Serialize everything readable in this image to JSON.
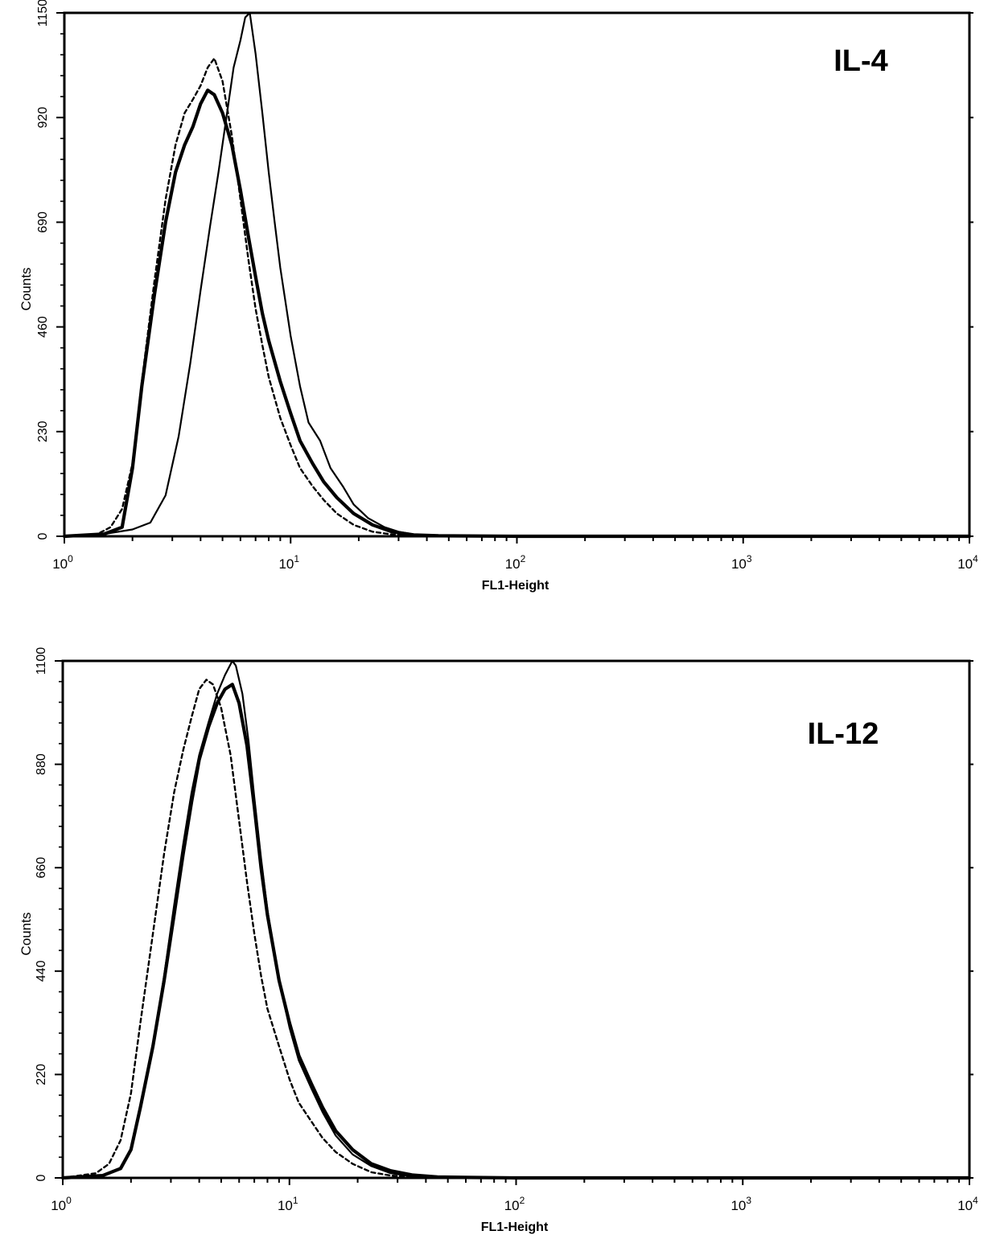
{
  "chart_data": [
    {
      "type": "line",
      "title": "IL-4",
      "xlabel": "FL1-Height",
      "ylabel": "Counts",
      "xscale": "log",
      "xlim": [
        1,
        10000
      ],
      "ylim": [
        0,
        1150
      ],
      "xticks": [
        1,
        10,
        100,
        1000,
        10000
      ],
      "xtick_labels": [
        {
          "base": "10",
          "exp": "0"
        },
        {
          "base": "10",
          "exp": "1"
        },
        {
          "base": "10",
          "exp": "2"
        },
        {
          "base": "10",
          "exp": "3"
        },
        {
          "base": "10",
          "exp": "4"
        }
      ],
      "yticks": [
        0,
        230,
        460,
        690,
        920,
        1150
      ],
      "ytick_labels": [
        "0",
        "230",
        "460",
        "690",
        "920",
        "1150"
      ],
      "grid": false,
      "series": [
        {
          "style": "dotted",
          "x": [
            1.0,
            1.4,
            1.6,
            1.8,
            2.0,
            2.2,
            2.5,
            2.8,
            3.1,
            3.4,
            3.7,
            4.0,
            4.3,
            4.6,
            5.0,
            5.5,
            6.0,
            6.5,
            7.0,
            7.5,
            8.0,
            9.0,
            10.0,
            11.0,
            12.5,
            14.0,
            16.0,
            19.0,
            23.0,
            28.0,
            35.0,
            45.0,
            100.0,
            10000.0
          ],
          "y": [
            0,
            5,
            20,
            60,
            160,
            340,
            560,
            740,
            860,
            930,
            960,
            990,
            1030,
            1050,
            1000,
            880,
            740,
            610,
            500,
            420,
            350,
            260,
            200,
            150,
            110,
            80,
            50,
            25,
            10,
            4,
            1,
            0,
            0,
            0
          ]
        },
        {
          "style": "thick",
          "x": [
            1.0,
            1.5,
            1.8,
            2.0,
            2.2,
            2.5,
            2.8,
            3.1,
            3.4,
            3.7,
            4.0,
            4.3,
            4.6,
            5.0,
            5.5,
            6.0,
            6.5,
            7.0,
            7.5,
            8.0,
            9.0,
            10.0,
            11.0,
            12.5,
            14.0,
            16.0,
            19.0,
            23.0,
            28.0,
            35.0,
            45.0,
            100.0,
            10000.0
          ],
          "y": [
            0,
            5,
            20,
            150,
            330,
            530,
            690,
            800,
            860,
            900,
            950,
            980,
            970,
            930,
            860,
            760,
            660,
            570,
            490,
            430,
            340,
            270,
            210,
            160,
            120,
            85,
            50,
            25,
            10,
            3,
            1,
            0,
            0
          ]
        },
        {
          "style": "thin",
          "x": [
            1.0,
            1.5,
            2.0,
            2.4,
            2.8,
            3.2,
            3.6,
            4.0,
            4.4,
            4.8,
            5.2,
            5.6,
            6.0,
            6.3,
            6.6,
            7.0,
            7.5,
            8.0,
            8.5,
            9.0,
            10.0,
            11.0,
            12.0,
            13.5,
            15.0,
            17.0,
            19.0,
            22.0,
            26.0,
            30.0,
            36.0,
            45.0,
            60.0,
            100.0,
            10000.0
          ],
          "y": [
            0,
            5,
            15,
            30,
            90,
            220,
            380,
            540,
            680,
            800,
            920,
            1030,
            1090,
            1140,
            1150,
            1060,
            930,
            800,
            690,
            590,
            440,
            330,
            250,
            210,
            150,
            110,
            70,
            40,
            20,
            10,
            3,
            1,
            0,
            0,
            0
          ]
        }
      ]
    },
    {
      "type": "line",
      "title": "IL-12",
      "xlabel": "FL1-Height",
      "ylabel": "Counts",
      "xscale": "log",
      "xlim": [
        1,
        10000
      ],
      "ylim": [
        0,
        1100
      ],
      "xticks": [
        1,
        10,
        100,
        1000,
        10000
      ],
      "xtick_labels": [
        {
          "base": "10",
          "exp": "0"
        },
        {
          "base": "10",
          "exp": "1"
        },
        {
          "base": "10",
          "exp": "2"
        },
        {
          "base": "10",
          "exp": "3"
        },
        {
          "base": "10",
          "exp": "4"
        }
      ],
      "yticks": [
        0,
        220,
        440,
        660,
        880,
        1100
      ],
      "ytick_labels": [
        "0",
        "220",
        "440",
        "660",
        "880",
        "1100"
      ],
      "grid": false,
      "series": [
        {
          "style": "dotted",
          "x": [
            1.0,
            1.4,
            1.6,
            1.8,
            2.0,
            2.2,
            2.5,
            2.8,
            3.1,
            3.4,
            3.7,
            4.0,
            4.3,
            4.6,
            5.0,
            5.5,
            6.0,
            6.5,
            7.0,
            7.5,
            8.0,
            9.0,
            10.0,
            11.0,
            12.5,
            14.0,
            16.0,
            19.0,
            23.0,
            28.0,
            35.0,
            45.0,
            100.0,
            10000.0
          ],
          "y": [
            0,
            10,
            30,
            80,
            180,
            330,
            520,
            690,
            820,
            910,
            980,
            1040,
            1060,
            1050,
            1000,
            900,
            760,
            630,
            520,
            430,
            360,
            280,
            210,
            160,
            120,
            85,
            55,
            30,
            12,
            5,
            2,
            0,
            0,
            0
          ]
        },
        {
          "style": "thick",
          "x": [
            1.0,
            1.5,
            1.8,
            2.0,
            2.2,
            2.5,
            2.8,
            3.1,
            3.4,
            3.7,
            4.0,
            4.4,
            4.8,
            5.2,
            5.6,
            6.0,
            6.5,
            7.0,
            7.5,
            8.0,
            9.0,
            10.0,
            11.0,
            12.5,
            14.0,
            16.0,
            19.0,
            23.0,
            28.0,
            35.0,
            45.0,
            60.0,
            100.0,
            10000.0
          ],
          "y": [
            0,
            5,
            20,
            60,
            150,
            280,
            420,
            560,
            690,
            800,
            890,
            960,
            1010,
            1040,
            1050,
            1010,
            920,
            790,
            660,
            560,
            420,
            330,
            260,
            200,
            150,
            100,
            60,
            30,
            15,
            6,
            2,
            1,
            0,
            0
          ]
        },
        {
          "style": "thin",
          "x": [
            1.0,
            1.5,
            1.8,
            2.0,
            2.2,
            2.5,
            2.8,
            3.1,
            3.4,
            3.7,
            4.0,
            4.4,
            4.8,
            5.2,
            5.6,
            5.8,
            6.2,
            6.6,
            7.0,
            7.5,
            8.0,
            9.0,
            10.0,
            11.0,
            12.5,
            14.0,
            16.0,
            19.0,
            23.0,
            28.0,
            35.0,
            45.0,
            100.0,
            10000.0
          ],
          "y": [
            0,
            5,
            20,
            60,
            150,
            280,
            430,
            580,
            710,
            820,
            900,
            970,
            1030,
            1070,
            1100,
            1090,
            1030,
            930,
            810,
            680,
            570,
            420,
            320,
            250,
            190,
            140,
            90,
            50,
            25,
            10,
            3,
            1,
            0,
            0
          ]
        }
      ]
    }
  ]
}
